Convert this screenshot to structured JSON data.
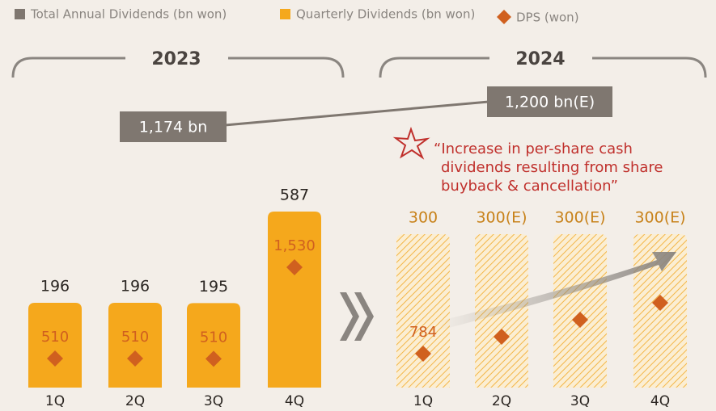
{
  "chart_data": {
    "type": "bar",
    "legend": [
      {
        "name": "Total Annual Dividends (bn won)",
        "color": "#7f7770"
      },
      {
        "name": "Quarterly Dividends (bn won)",
        "color": "#f5a81c"
      },
      {
        "name": "DPS (won)",
        "color": "#d0601f"
      }
    ],
    "panels": [
      {
        "title": "2023",
        "total_label": "1,174 bn",
        "categories": [
          "1Q",
          "2Q",
          "3Q",
          "4Q"
        ],
        "values": [
          196,
          196,
          195,
          587
        ],
        "ylim": [
          -167,
          587
        ],
        "hatched": false,
        "dps": [
          510,
          510,
          510,
          1530
        ],
        "dps_labels": [
          "510",
          "510",
          "510",
          "1,530"
        ]
      },
      {
        "title": "2024",
        "total_label": "1,200 bn(E)",
        "categories": [
          "1Q",
          "2Q",
          "3Q",
          "4Q"
        ],
        "values": [
          300,
          300,
          300,
          300
        ],
        "value_labels": [
          "300",
          "300(E)",
          "300(E)",
          "300(E)"
        ],
        "ylim": [
          0,
          300
        ],
        "hatched": true,
        "dps": [
          784,
          null,
          null,
          null
        ],
        "dps_labels": [
          "784",
          null,
          null,
          null
        ]
      }
    ],
    "annotation": [
      "“Increase in per-share cash",
      "dividends resulting from share",
      "buyback & cancellation”"
    ]
  }
}
